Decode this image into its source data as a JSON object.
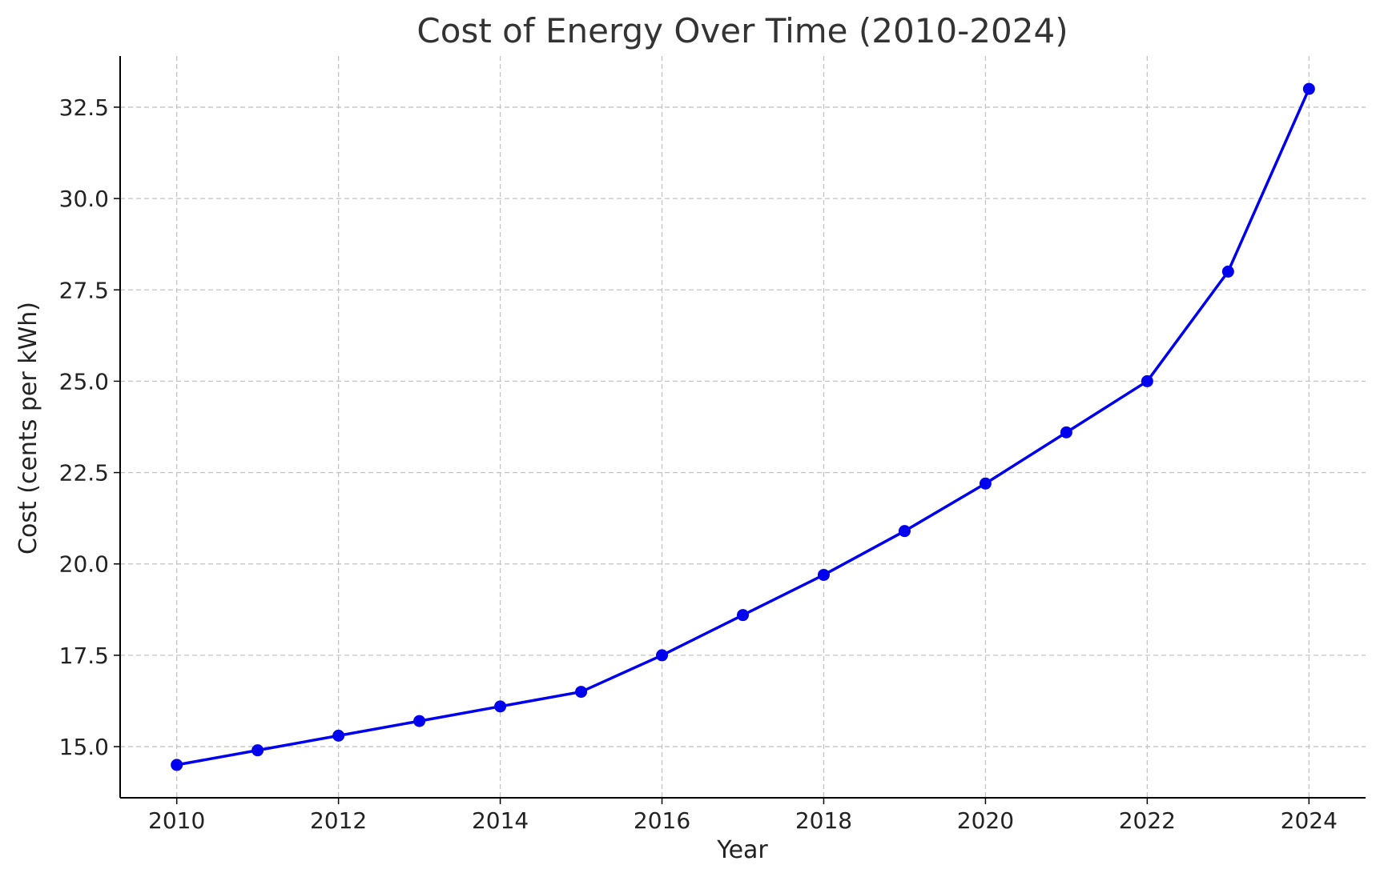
{
  "chart_data": {
    "type": "line",
    "title": "Cost of Energy Over Time (2010-2024)",
    "xlabel": "Year",
    "ylabel": "Cost (cents per kWh)",
    "xlim": [
      2009.3,
      2024.7
    ],
    "ylim": [
      13.6,
      33.9
    ],
    "x_ticks": [
      2010,
      2012,
      2014,
      2016,
      2018,
      2020,
      2022,
      2024
    ],
    "y_ticks": [
      15.0,
      17.5,
      20.0,
      22.5,
      25.0,
      27.5,
      30.0,
      32.5
    ],
    "grid": true,
    "series": [
      {
        "color": "#0000ee",
        "x": [
          2010,
          2011,
          2012,
          2013,
          2014,
          2015,
          2016,
          2017,
          2018,
          2019,
          2020,
          2021,
          2022,
          2023,
          2024
        ],
        "y": [
          14.5,
          14.9,
          15.3,
          15.7,
          16.1,
          16.5,
          17.5,
          18.6,
          19.7,
          20.9,
          22.2,
          23.6,
          25.0,
          28.0,
          33.0
        ]
      }
    ]
  }
}
